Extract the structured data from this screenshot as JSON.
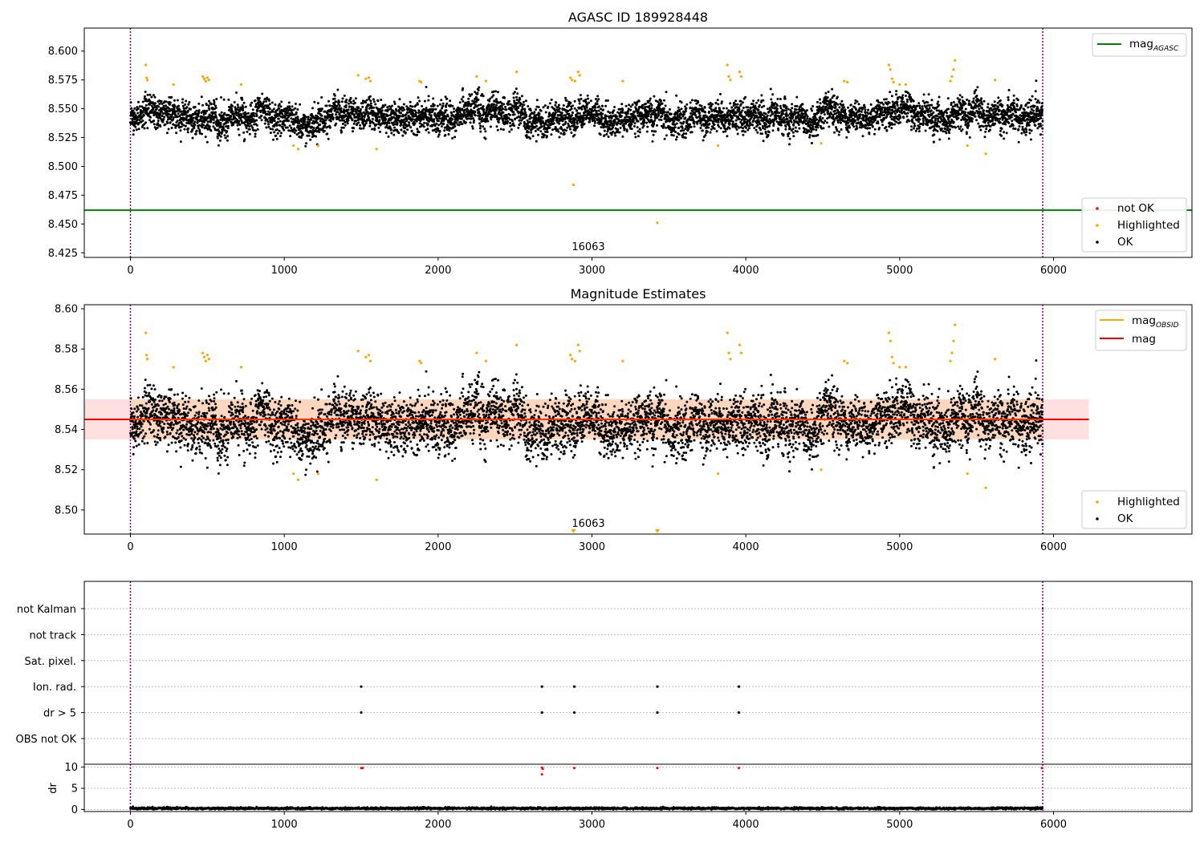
{
  "figure": {
    "title": "AGASC ID 189928448",
    "title2": "Magnitude Estimates",
    "obsid_label": "16063"
  },
  "colors": {
    "ok": "#000000",
    "highlighted": "#ffa500",
    "not_ok": "#ff0000",
    "mag_agasc": "#008000",
    "mag_obsid": "#ffa500",
    "mag": "#ff0000",
    "band": "#ffb0b0",
    "vline": "#800080",
    "grid": "#b0b0b0"
  },
  "chart_data": [
    {
      "type": "scatter",
      "title": "AGASC ID 189928448",
      "xlim": [
        -300,
        6900
      ],
      "ylim": [
        8.421,
        8.62
      ],
      "x_ticks": [
        0,
        1000,
        2000,
        3000,
        4000,
        5000,
        6000
      ],
      "y_ticks": [
        "8.425",
        "8.450",
        "8.475",
        "8.500",
        "8.525",
        "8.550",
        "8.575",
        "8.600"
      ],
      "y_tick_values": [
        8.425,
        8.45,
        8.475,
        8.5,
        8.525,
        8.55,
        8.575,
        8.6
      ],
      "vlines": [
        0,
        5930
      ],
      "hline": {
        "y": 8.462,
        "label": "mag",
        "subscript": "AGASC"
      },
      "obs_label": {
        "text": "16063",
        "x": 2965
      },
      "legend_upper": [
        {
          "label": "mag",
          "subscript": "AGASC",
          "kind": "line",
          "color": "#008000"
        }
      ],
      "legend_lower": [
        {
          "label": "not OK",
          "kind": "point",
          "color": "#ff0000"
        },
        {
          "label": "Highlighted",
          "kind": "point",
          "color": "#ffa500"
        },
        {
          "label": "OK",
          "kind": "point",
          "color": "#000000"
        }
      ],
      "series": [
        {
          "name": "OK",
          "n_points": 5930,
          "x_range": [
            0,
            5930
          ],
          "center": 8.543,
          "spread": 0.009
        },
        {
          "name": "Highlighted",
          "x": [
            100,
            105,
            110,
            280,
            470,
            480,
            490,
            500,
            510,
            720,
            1060,
            1090,
            1220,
            1480,
            1530,
            1550,
            1560,
            1600,
            1880,
            1890,
            2250,
            2310,
            2510,
            2860,
            2870,
            2880,
            2890,
            2910,
            2920,
            3200,
            3820,
            3880,
            3890,
            3900,
            3960,
            3970,
            4490,
            4640,
            4660,
            4930,
            4940,
            4950,
            4960,
            5000,
            5040,
            5330,
            5340,
            5350,
            5360,
            5440,
            5560,
            5620
          ],
          "y": [
            8.588,
            8.577,
            8.575,
            8.571,
            8.578,
            8.576,
            8.574,
            8.577,
            8.575,
            8.571,
            8.518,
            8.515,
            8.518,
            8.579,
            8.576,
            8.577,
            8.574,
            8.515,
            8.574,
            8.573,
            8.578,
            8.574,
            8.582,
            8.577,
            8.575,
            8.484,
            8.574,
            8.582,
            8.579,
            8.574,
            8.518,
            8.588,
            8.578,
            8.575,
            8.582,
            8.578,
            8.52,
            8.574,
            8.573,
            8.588,
            8.584,
            8.576,
            8.573,
            8.571,
            8.571,
            8.574,
            8.578,
            8.584,
            8.592,
            8.518,
            8.511,
            8.575
          ]
        },
        {
          "name": "Highlighted (low)",
          "x": [
            3425
          ],
          "y": [
            8.451
          ]
        }
      ]
    },
    {
      "type": "scatter",
      "title": "Magnitude Estimates",
      "xlim": [
        -300,
        6900
      ],
      "ylim": [
        8.488,
        8.602
      ],
      "x_ticks": [
        0,
        1000,
        2000,
        3000,
        4000,
        5000,
        6000
      ],
      "y_ticks": [
        "8.50",
        "8.52",
        "8.54",
        "8.56",
        "8.58",
        "8.60"
      ],
      "y_tick_values": [
        8.5,
        8.52,
        8.54,
        8.56,
        8.58,
        8.6
      ],
      "vlines": [
        0,
        5930
      ],
      "mag_line": {
        "y": 8.545,
        "x_range": [
          -300,
          6230
        ]
      },
      "band_full": {
        "y": [
          8.535,
          8.555
        ],
        "x_range": [
          -300,
          6230
        ]
      },
      "band_obs": {
        "y": [
          8.535,
          8.555
        ],
        "x_range": [
          0,
          5930
        ]
      },
      "obs_label": {
        "text": "16063",
        "x": 2965
      },
      "offscale_markers_x": [
        2880,
        3425
      ],
      "legend_upper": [
        {
          "label": "mag",
          "subscript": "OBSID",
          "kind": "line",
          "color": "#ffa500"
        },
        {
          "label": "mag",
          "subscript": "",
          "kind": "line",
          "color": "#ff0000"
        }
      ],
      "legend_lower": [
        {
          "label": "Highlighted",
          "kind": "point",
          "color": "#ffa500"
        },
        {
          "label": "OK",
          "kind": "point",
          "color": "#000000"
        }
      ],
      "series": [
        {
          "name": "OK",
          "n_points": 5930,
          "x_range": [
            0,
            5930
          ],
          "center": 8.543,
          "spread": 0.009
        },
        {
          "name": "Highlighted",
          "x": [
            100,
            105,
            110,
            280,
            470,
            480,
            490,
            500,
            510,
            720,
            1060,
            1090,
            1220,
            1480,
            1530,
            1550,
            1560,
            1600,
            1880,
            1890,
            2250,
            2310,
            2510,
            2860,
            2870,
            2890,
            2910,
            2920,
            3200,
            3820,
            3880,
            3890,
            3900,
            3960,
            3970,
            4490,
            4640,
            4660,
            4930,
            4940,
            4950,
            4960,
            5000,
            5040,
            5330,
            5340,
            5350,
            5360,
            5440,
            5560,
            5620
          ],
          "y": [
            8.588,
            8.577,
            8.575,
            8.571,
            8.578,
            8.576,
            8.574,
            8.577,
            8.575,
            8.571,
            8.518,
            8.515,
            8.518,
            8.579,
            8.576,
            8.577,
            8.574,
            8.515,
            8.574,
            8.573,
            8.578,
            8.574,
            8.582,
            8.577,
            8.575,
            8.574,
            8.582,
            8.579,
            8.574,
            8.518,
            8.588,
            8.578,
            8.575,
            8.582,
            8.578,
            8.52,
            8.574,
            8.573,
            8.588,
            8.584,
            8.576,
            8.573,
            8.571,
            8.571,
            8.574,
            8.578,
            8.584,
            8.592,
            8.518,
            8.511,
            8.575
          ]
        }
      ]
    },
    {
      "type": "scatter",
      "title": "",
      "xlim": [
        -300,
        6900
      ],
      "categories": [
        "OBS not OK",
        "dr > 5",
        "Ion. rad.",
        "Sat. pixel.",
        "not track",
        "not Kalman"
      ],
      "vlines": [
        0,
        5930
      ],
      "flags": [
        {
          "category": "dr > 5",
          "x": [
            1500,
            2675,
            2885,
            3425,
            3955
          ]
        },
        {
          "category": "Ion. rad.",
          "x": [
            1500,
            2675,
            2885,
            3425,
            3955
          ]
        }
      ]
    },
    {
      "type": "scatter",
      "title": "",
      "ylabel": "dr",
      "xlim": [
        -300,
        6900
      ],
      "ylim": [
        -0.5,
        10.7
      ],
      "x_ticks": [
        0,
        1000,
        2000,
        3000,
        4000,
        5000,
        6000
      ],
      "y_ticks": [
        "0",
        "5",
        "10"
      ],
      "y_tick_values": [
        0,
        5,
        10
      ],
      "vlines": [
        0,
        5930
      ],
      "series": [
        {
          "name": "OK",
          "n_points": 5930,
          "x_range": [
            0,
            5930
          ],
          "center": 0.25,
          "spread": 0.2
        },
        {
          "name": "not OK",
          "x": [
            1500,
            1510,
            2675,
            2680,
            2675,
            2885,
            3425,
            3955,
            5925
          ],
          "y": [
            9.8,
            9.8,
            9.9,
            9.6,
            8.3,
            9.8,
            9.8,
            9.8,
            9.8
          ]
        }
      ]
    }
  ]
}
